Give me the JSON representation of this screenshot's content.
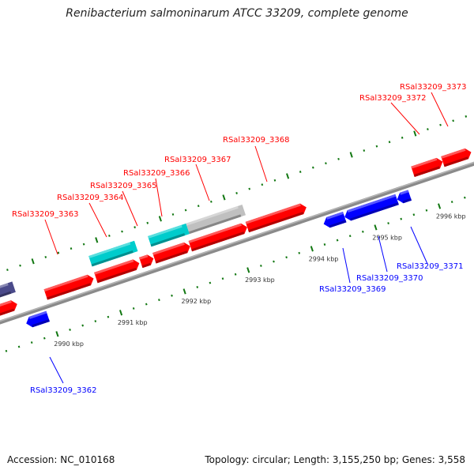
{
  "title": "Renibacterium salmoninarum ATCC 33209, complete genome",
  "footer": {
    "accession": "Accession: NC_010168",
    "topology": "Topology: circular; Length: 3,155,250 bp; Genes: 3,558"
  },
  "colors": {
    "forward": "#ff0000",
    "reverse": "#0000ff",
    "rna": "#00cccc",
    "pseudo": "#c0c0c0",
    "other": "#4a4a8a",
    "ticks": "#117711",
    "backbone": "#8a8a8a"
  },
  "scale_labels": [
    "2990 kbp",
    "2991 kbp",
    "2992 kbp",
    "2993 kbp",
    "2994 kbp",
    "2995 kbp",
    "2996 kbp"
  ],
  "forward_genes": [
    "RSal33209_3363",
    "RSal33209_3364",
    "RSal33209_3365",
    "RSal33209_3366",
    "RSal33209_3367",
    "RSal33209_3368",
    "RSal33209_3372",
    "RSal33209_3373"
  ],
  "reverse_genes": [
    "RSal33209_3362",
    "RSal33209_3369",
    "RSal33209_3370",
    "RSal33209_3371"
  ]
}
